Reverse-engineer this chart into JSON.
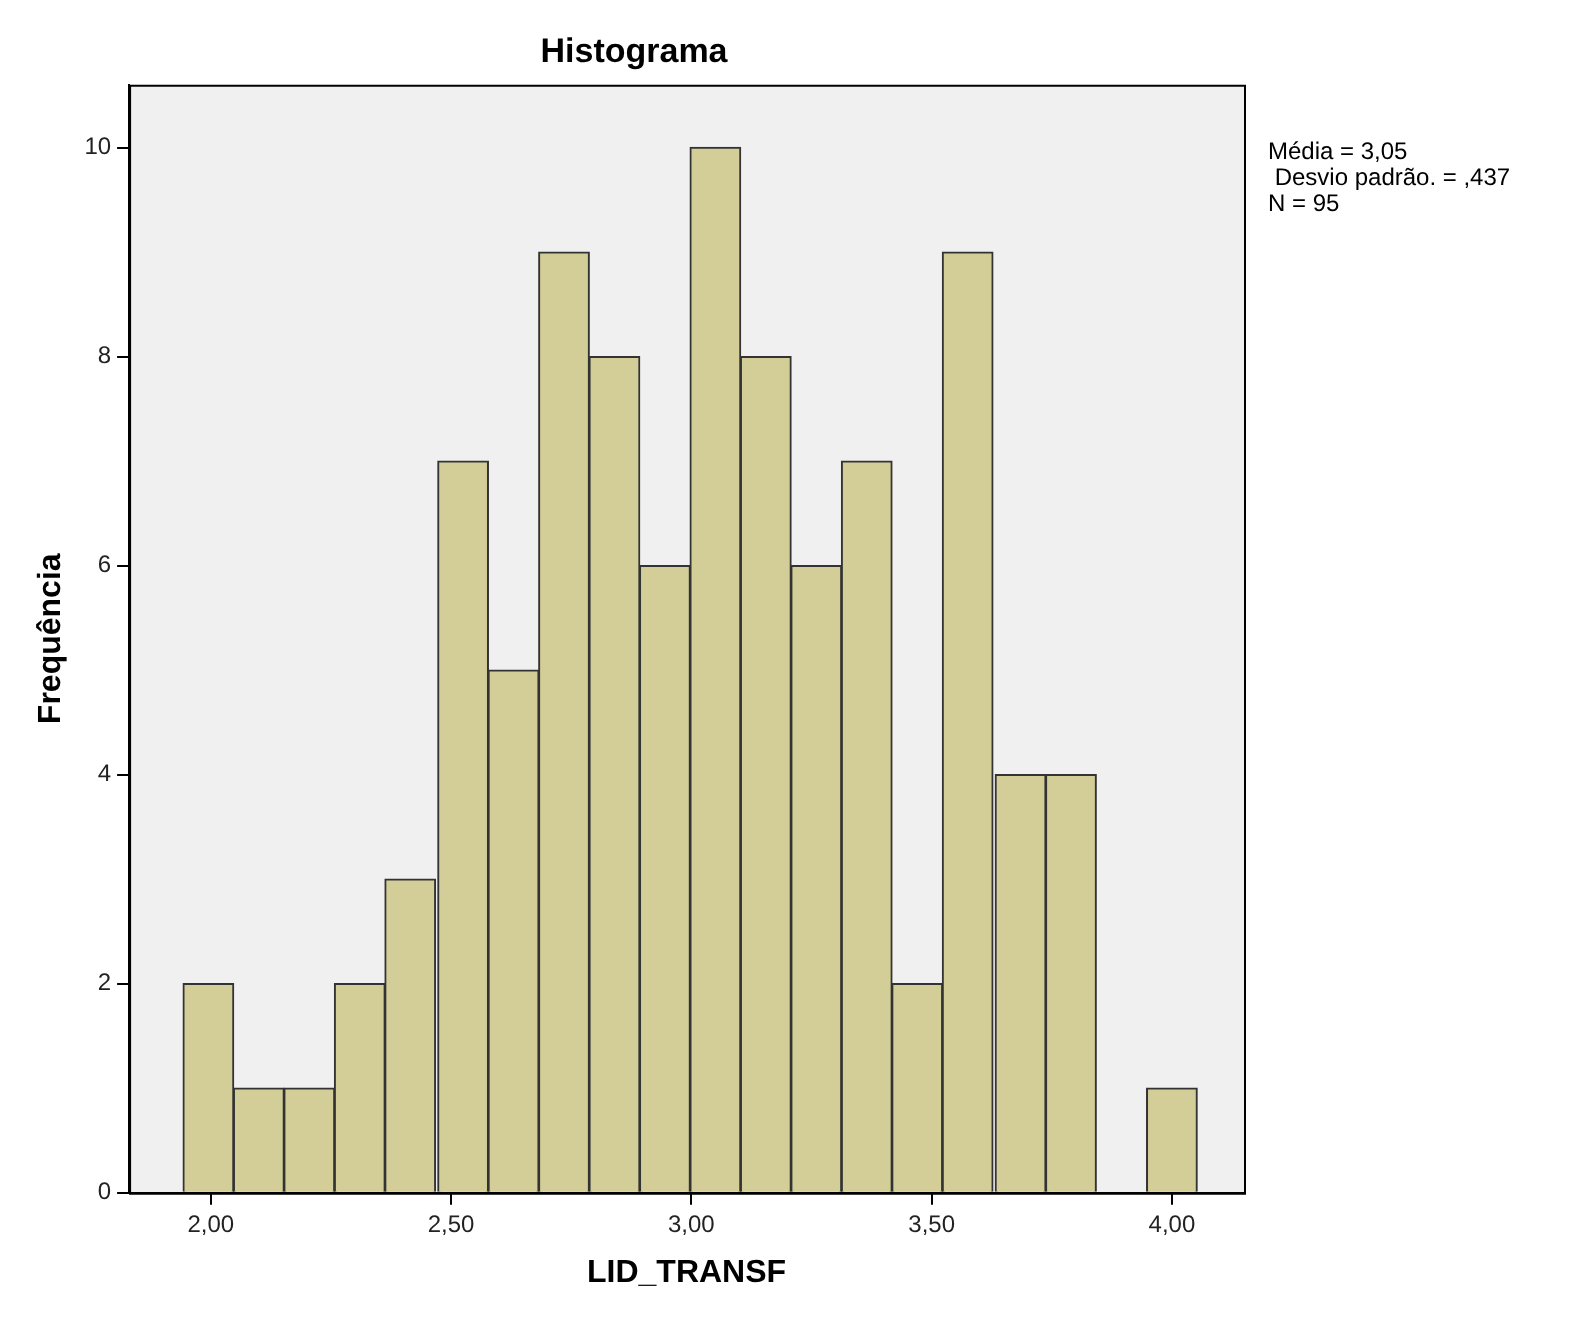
{
  "chart_data": {
    "type": "histogram",
    "title": "Histograma",
    "xlabel": "LID_TRANSF",
    "ylabel": "Frequência",
    "bins": [
      1.94,
      2.05,
      2.15,
      2.26,
      2.36,
      2.47,
      2.58,
      2.68,
      2.79,
      2.89,
      3.0,
      3.1,
      3.21,
      3.31,
      3.42,
      3.52,
      3.63,
      3.74,
      3.84,
      3.95,
      4.05
    ],
    "values": [
      2,
      1,
      1,
      2,
      3,
      7,
      5,
      9,
      8,
      6,
      10,
      8,
      6,
      7,
      2,
      9,
      4,
      4,
      0,
      1
    ],
    "color": "#d3ce97",
    "xlim": [
      1.83,
      4.15
    ],
    "xticks": [
      {
        "value": 2,
        "label": "2,00"
      },
      {
        "value": 2.5,
        "label": "2,50"
      },
      {
        "value": 3,
        "label": "3,00"
      },
      {
        "value": 3.5,
        "label": "3,50"
      },
      {
        "value": 4,
        "label": "4,00"
      }
    ],
    "ylim": [
      0,
      10.6
    ],
    "yticks": [
      0,
      2,
      4,
      6,
      8,
      10
    ],
    "grid": false,
    "legend": false,
    "annotations": [
      "Média = 3,05",
      " Desvio padrão. = ,437",
      "N = 95"
    ]
  }
}
